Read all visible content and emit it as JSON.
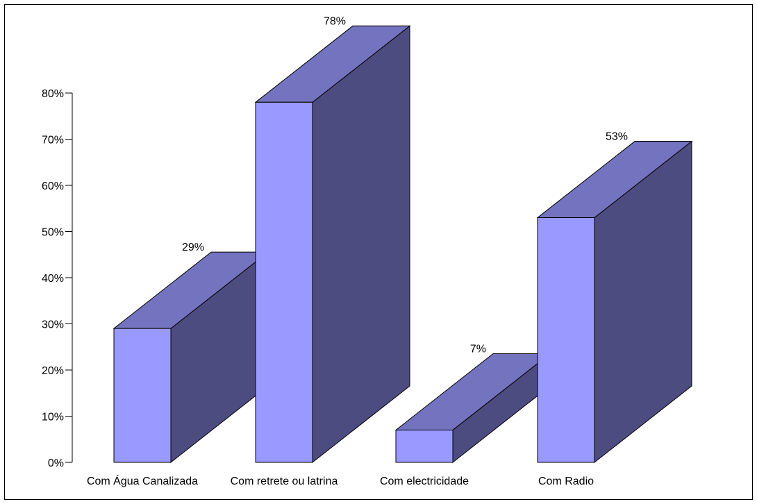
{
  "chart_data": {
    "type": "bar",
    "three_d": true,
    "categories": [
      "Com Água Canalizada",
      "Com retrete ou latrina",
      "Com electricidade",
      "Com Radio"
    ],
    "values": [
      29,
      78,
      7,
      53
    ],
    "data_labels": [
      "29%",
      "78%",
      "7%",
      "53%"
    ],
    "title": "",
    "xlabel": "",
    "ylabel": "",
    "ylim": [
      0,
      80
    ],
    "yticks": [
      "0%",
      "10%",
      "20%",
      "30%",
      "40%",
      "50%",
      "60%",
      "70%",
      "80%"
    ],
    "grid": false,
    "legend": "none",
    "colors": {
      "front": "#9999ff",
      "top": "#7373bf",
      "side": "#4c4c80",
      "outline": "#000000",
      "frame": "#000000"
    }
  }
}
